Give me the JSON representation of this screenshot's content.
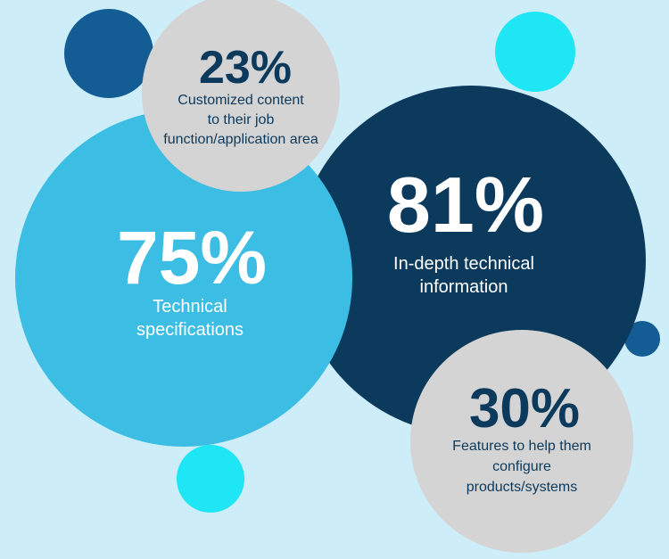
{
  "bubbles": [
    {
      "value": "75%",
      "lines": [
        "Technical",
        "specifications"
      ]
    },
    {
      "value": "81%",
      "lines": [
        "In-depth technical",
        "information"
      ]
    },
    {
      "value": "23%",
      "lines": [
        "Customized content",
        "to their job",
        "function/application area"
      ]
    },
    {
      "value": "30%",
      "lines": [
        "Features to help them",
        "configure",
        "products/systems"
      ]
    }
  ]
}
